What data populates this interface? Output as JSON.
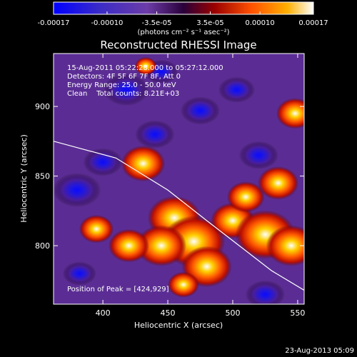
{
  "chart_data": {
    "type": "heatmap",
    "title": "Reconstructed RHESSI Image",
    "xlabel": "Heliocentric X (arcsec)",
    "ylabel": "Heliocentric Y (arcsec)",
    "xlim": [
      362,
      555
    ],
    "ylim": [
      758,
      938
    ],
    "xticks": [
      400,
      450,
      500,
      550
    ],
    "yticks": [
      800,
      850,
      900
    ],
    "colorbar": {
      "range": [
        -0.00017,
        0.00017
      ],
      "ticks": [
        -0.00017,
        -0.0001,
        -3.5e-05,
        3.5e-05,
        0.0001,
        0.00017
      ],
      "tick_labels": [
        "-0.00017",
        "-0.00010",
        "-3.5e-05",
        "3.5e-05",
        "0.00010",
        "0.00017"
      ],
      "unit_label": "(photons cm⁻² s⁻¹ asec⁻²)",
      "colormap": [
        "#0000ff",
        "#3c2cc6",
        "#6c3ca8",
        "#2a003a",
        "#9a0000",
        "#ff5000",
        "#ffb000",
        "#ffffff"
      ]
    },
    "annotations": [
      "15-Aug-2011 05:22:28.000 to 05:27:12.000",
      "Detectors: 4F 5F 6F 7F 8F, Att 0",
      "Energy Range: 25.0 - 50.0 keV",
      "Clean    Total counts: 8.21E+03"
    ],
    "peak_label": "Position of Peak = [424,929]",
    "peak": [
      424,
      929
    ],
    "limb_line": [
      [
        362,
        875
      ],
      [
        410,
        863
      ],
      [
        450,
        840
      ],
      [
        480,
        818
      ],
      [
        505,
        800
      ],
      [
        530,
        782
      ],
      [
        555,
        768
      ]
    ],
    "hot_spots": [
      {
        "x": 431,
        "y": 859,
        "intensity": 0.0001
      },
      {
        "x": 455,
        "y": 820,
        "intensity": 0.00013
      },
      {
        "x": 470,
        "y": 803,
        "intensity": 0.00016
      },
      {
        "x": 445,
        "y": 800,
        "intensity": 0.00012
      },
      {
        "x": 500,
        "y": 818,
        "intensity": 0.0001
      },
      {
        "x": 525,
        "y": 808,
        "intensity": 0.00015
      },
      {
        "x": 545,
        "y": 800,
        "intensity": 0.00012
      },
      {
        "x": 420,
        "y": 800,
        "intensity": 9e-05
      },
      {
        "x": 480,
        "y": 785,
        "intensity": 0.00012
      },
      {
        "x": 510,
        "y": 835,
        "intensity": 8e-05
      },
      {
        "x": 535,
        "y": 845,
        "intensity": 9e-05
      },
      {
        "x": 548,
        "y": 895,
        "intensity": 8e-05
      },
      {
        "x": 395,
        "y": 812,
        "intensity": 7e-05
      },
      {
        "x": 462,
        "y": 772,
        "intensity": 6e-05
      },
      {
        "x": 433,
        "y": 929,
        "intensity": 3e-05
      }
    ],
    "cold_spots": [
      {
        "x": 380,
        "y": 840,
        "intensity": -0.00013
      },
      {
        "x": 418,
        "y": 912,
        "intensity": -0.00012
      },
      {
        "x": 440,
        "y": 880,
        "intensity": -0.0001
      },
      {
        "x": 475,
        "y": 897,
        "intensity": -0.0001
      },
      {
        "x": 400,
        "y": 860,
        "intensity": -0.0001
      },
      {
        "x": 503,
        "y": 912,
        "intensity": -9e-05
      },
      {
        "x": 520,
        "y": 865,
        "intensity": -0.0001
      },
      {
        "x": 382,
        "y": 780,
        "intensity": -8e-05
      },
      {
        "x": 525,
        "y": 765,
        "intensity": -0.0001
      },
      {
        "x": 445,
        "y": 925,
        "intensity": -8e-05
      }
    ],
    "grid": false
  },
  "footer": {
    "timestamp": "23-Aug-2013 05:09"
  }
}
